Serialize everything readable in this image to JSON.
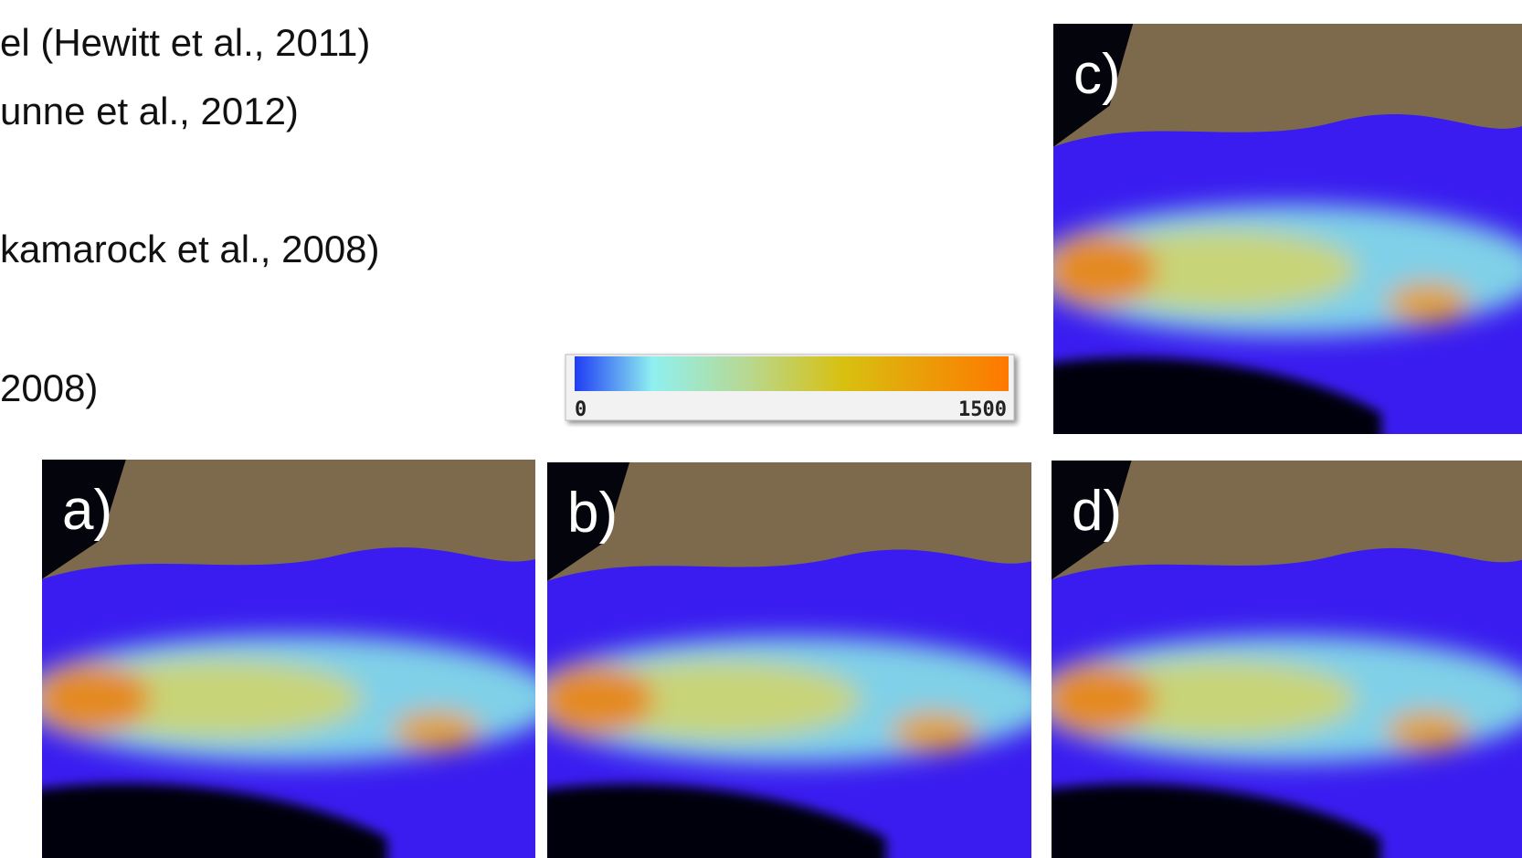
{
  "text_lines": [
    "el (Hewitt et al., 2011)",
    "unne et al., 2012)",
    "kamarock et al., 2008)",
    "2008)"
  ],
  "colorbar": {
    "ticks": [
      0,
      1500
    ]
  },
  "panels": [
    {
      "label": "a)"
    },
    {
      "label": "b)"
    },
    {
      "label": "c)"
    },
    {
      "label": "d)"
    }
  ]
}
